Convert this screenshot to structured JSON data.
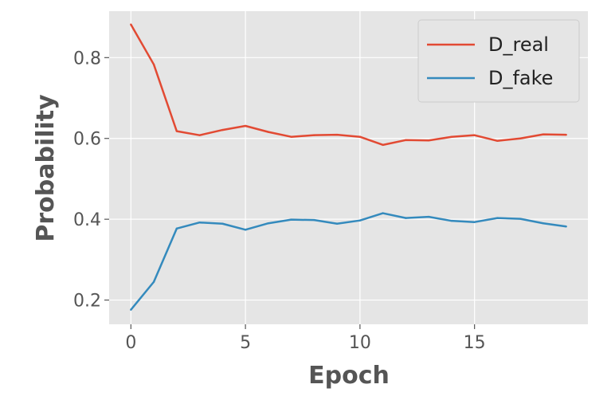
{
  "chart_data": {
    "type": "line",
    "xlabel": "Epoch",
    "ylabel": "Probability",
    "xlim": [
      -0.95,
      19.95
    ],
    "ylim": [
      0.14,
      0.915
    ],
    "xticks": [
      0,
      5,
      10,
      15
    ],
    "yticks": [
      0.2,
      0.4,
      0.6,
      0.8
    ],
    "xtick_labels": [
      "0",
      "5",
      "10",
      "15"
    ],
    "ytick_labels": [
      "0.2",
      "0.4",
      "0.6",
      "0.8"
    ],
    "grid": true,
    "legend_position": "top-right",
    "x": [
      0,
      1,
      2,
      3,
      4,
      5,
      6,
      7,
      8,
      9,
      10,
      11,
      12,
      13,
      14,
      15,
      16,
      17,
      18,
      19
    ],
    "series": [
      {
        "name": "D_real",
        "color": "#E24A33",
        "values": [
          0.882,
          0.783,
          0.618,
          0.608,
          0.621,
          0.631,
          0.616,
          0.604,
          0.608,
          0.609,
          0.604,
          0.584,
          0.596,
          0.595,
          0.604,
          0.608,
          0.594,
          0.6,
          0.61,
          0.609
        ]
      },
      {
        "name": "D_fake",
        "color": "#348ABD",
        "values": [
          0.176,
          0.245,
          0.377,
          0.392,
          0.389,
          0.374,
          0.39,
          0.399,
          0.398,
          0.389,
          0.397,
          0.415,
          0.403,
          0.406,
          0.396,
          0.393,
          0.403,
          0.401,
          0.39,
          0.382
        ]
      }
    ]
  }
}
